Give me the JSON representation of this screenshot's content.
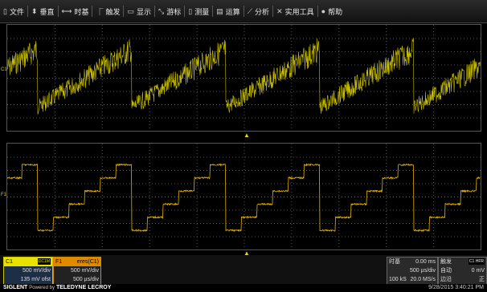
{
  "menu": [
    {
      "label": "文件",
      "icon": "file-icon",
      "glyph": "▯"
    },
    {
      "label": "垂直",
      "icon": "vertical-icon",
      "glyph": "⬍"
    },
    {
      "label": "时基",
      "icon": "timebase-icon",
      "glyph": "⟷"
    },
    {
      "label": "触发",
      "icon": "trigger-icon",
      "glyph": "⎾"
    },
    {
      "label": "显示",
      "icon": "display-icon",
      "glyph": "▭"
    },
    {
      "label": "游标",
      "icon": "cursor-icon",
      "glyph": "⤡"
    },
    {
      "label": "测量",
      "icon": "measure-icon",
      "glyph": "▯"
    },
    {
      "label": "运算",
      "icon": "math-icon",
      "glyph": "▤"
    },
    {
      "label": "分析",
      "icon": "analysis-icon",
      "glyph": "⟋"
    },
    {
      "label": "实用工具",
      "icon": "tools-icon",
      "glyph": "✕"
    },
    {
      "label": "帮助",
      "icon": "help-icon",
      "glyph": "●"
    }
  ],
  "traces": {
    "c1_label": "C1",
    "f1_label": "F1",
    "c1_color": "#c9c000",
    "f1_color": "#e0b000"
  },
  "channel": {
    "name": "C1",
    "coupling": "DC1M",
    "vdiv": "500 mV/div",
    "offset": "135 mV ofst"
  },
  "math": {
    "name": "F1",
    "func": "eres(C1)",
    "vdiv": "500 mV/div",
    "tdiv": "500 µs/div"
  },
  "timebase": {
    "title": "时基",
    "delay": "0.00 ms",
    "tdiv": "500 µs/div",
    "samples": "100 kS",
    "rate": "20.0 MS/s"
  },
  "trigger": {
    "title": "触发",
    "src": "C1",
    "coupling": "HFR",
    "mode": "自动",
    "level": "0 mV",
    "type": "边沿",
    "slope": "正"
  },
  "footer": {
    "brand": "SIGLENT",
    "powered": "Powered by",
    "partner": "TELEDYNE LECROY",
    "datetime": "9/28/2015 3:40:21 PM"
  }
}
